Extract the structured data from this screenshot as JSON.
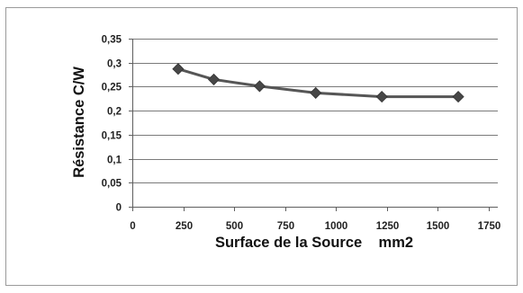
{
  "chart_data": {
    "type": "line",
    "title": "",
    "xlabel": "Surface de la Source    mm2",
    "ylabel": "Résistance C/W",
    "x": [
      225,
      400,
      625,
      900,
      1225,
      1600
    ],
    "series": [
      {
        "values": [
          0.287,
          0.265,
          0.251,
          0.237,
          0.229,
          0.229
        ]
      }
    ],
    "xlim": [
      0,
      1750
    ],
    "ylim": [
      0,
      0.35
    ],
    "xticks": {
      "values": [
        0,
        250,
        500,
        750,
        1000,
        1250,
        1500,
        1750
      ],
      "labels": [
        "0",
        "250",
        "500",
        "750",
        "1000",
        "1250",
        "1500",
        "1750"
      ]
    },
    "yticks": {
      "values": [
        0,
        0.05,
        0.1,
        0.15,
        0.2,
        0.25,
        0.3,
        0.35
      ],
      "labels": [
        "0",
        "0,05",
        "0,1",
        "0,15",
        "0,2",
        "0,25",
        "0,3",
        "0,35"
      ]
    },
    "grid": "horizontal",
    "legend": "none",
    "marker": "diamond",
    "colors": {
      "frame": "#9a9a9a",
      "grid": "#7a7a7a",
      "axis": "#5e5e5e",
      "line": "#565656",
      "marker": "#474747"
    }
  }
}
